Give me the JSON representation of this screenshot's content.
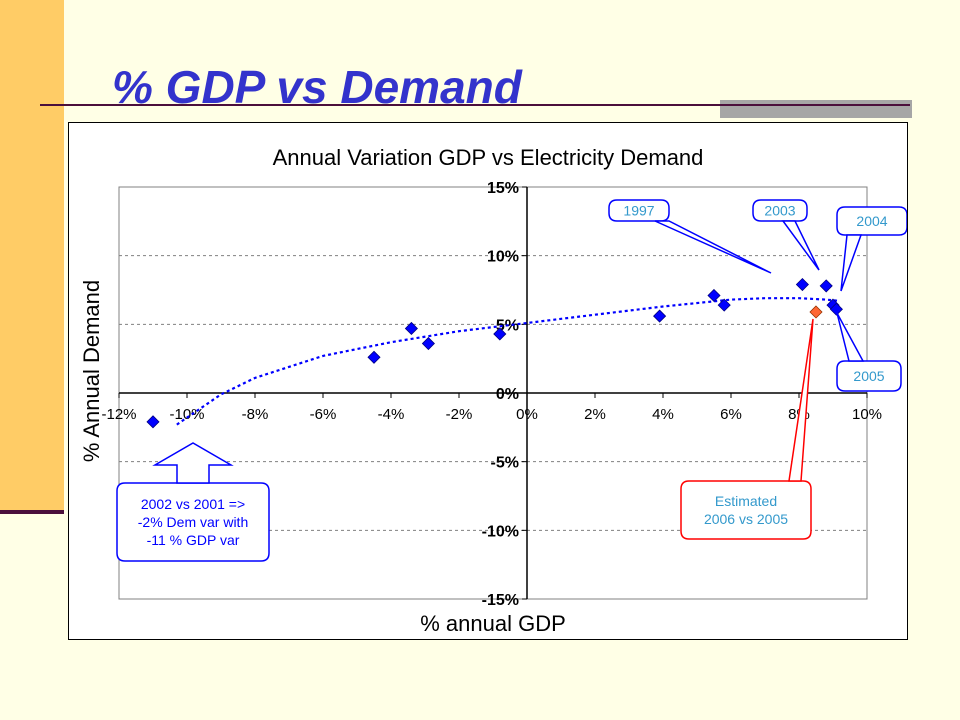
{
  "slide": {
    "title": "% GDP vs Demand"
  },
  "chart_data": {
    "type": "scatter",
    "title": "Annual Variation GDP  vs Electricity Demand",
    "xlabel": "% annual GDP",
    "ylabel": "% Annual Demand",
    "xlim": [
      -12,
      10
    ],
    "ylim": [
      -15,
      15
    ],
    "x_ticks": [
      -12,
      -10,
      -8,
      -6,
      -4,
      -2,
      0,
      2,
      4,
      6,
      8,
      10
    ],
    "x_tick_labels": [
      "-12%",
      "-10%",
      "-8%",
      "-6%",
      "-4%",
      "-2%",
      "0%",
      "2%",
      "4%",
      "6%",
      "8%",
      "10%"
    ],
    "y_ticks": [
      -15,
      -10,
      -5,
      0,
      5,
      10,
      15
    ],
    "y_tick_labels": [
      "-15%",
      "-10%",
      "-5%",
      "0%",
      "5%",
      "10%",
      "15%"
    ],
    "grid": "horizontal-dashed",
    "series": [
      {
        "color": "#0000FF",
        "marker": "diamond",
        "points": [
          {
            "x": -11.0,
            "y": -2.1
          },
          {
            "x": -4.5,
            "y": 2.6
          },
          {
            "x": -3.4,
            "y": 4.7
          },
          {
            "x": -2.9,
            "y": 3.6
          },
          {
            "x": -0.8,
            "y": 4.3
          },
          {
            "x": 3.9,
            "y": 5.6
          },
          {
            "x": 5.5,
            "y": 7.1
          },
          {
            "x": 5.8,
            "y": 6.4
          },
          {
            "x": 8.1,
            "y": 7.9
          },
          {
            "x": 8.8,
            "y": 7.8
          },
          {
            "x": 9.0,
            "y": 6.4
          },
          {
            "x": 9.1,
            "y": 6.1
          }
        ]
      },
      {
        "color": "#FF6633",
        "marker": "diamond",
        "points": [
          {
            "x": 8.5,
            "y": 5.9
          }
        ]
      }
    ],
    "trendline": {
      "type": "polynomial",
      "color": "#0000FF",
      "style": "dotted",
      "points": [
        [
          -10.3,
          -2.3
        ],
        [
          -9.0,
          -0.1
        ],
        [
          -8.0,
          1.1
        ],
        [
          -6.0,
          2.7
        ],
        [
          -4.0,
          3.7
        ],
        [
          -2.0,
          4.5
        ],
        [
          0.0,
          5.1
        ],
        [
          2.0,
          5.7
        ],
        [
          4.0,
          6.3
        ],
        [
          6.0,
          6.8
        ],
        [
          7.0,
          6.9
        ],
        [
          8.0,
          6.9
        ],
        [
          8.8,
          6.8
        ],
        [
          9.2,
          6.7
        ]
      ]
    },
    "annotations": [
      {
        "label": "1997",
        "color": "#0000FF",
        "text_color": "#3399CC"
      },
      {
        "label": "2003",
        "color": "#0000FF",
        "text_color": "#3399CC"
      },
      {
        "label": "2004",
        "color": "#0000FF",
        "text_color": "#3399CC"
      },
      {
        "label": "2005",
        "color": "#0000FF",
        "text_color": "#3399CC"
      },
      {
        "lines": [
          "Estimated",
          "2006 vs 2005"
        ],
        "color": "#FF0000",
        "text_color": "#3399CC"
      },
      {
        "lines": [
          "2002 vs 2001 =>",
          "-2% Dem var with",
          "-11 % GDP var"
        ],
        "color": "#0000FF",
        "text_color": "#0000FF"
      }
    ]
  }
}
